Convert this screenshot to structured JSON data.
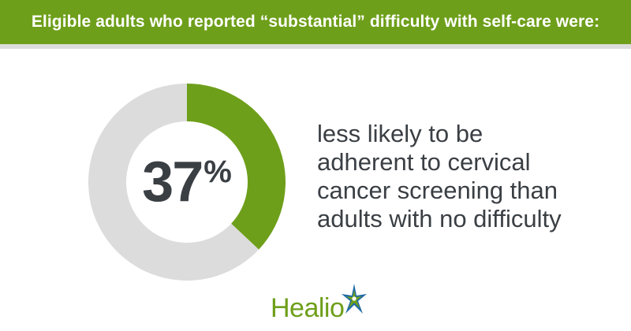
{
  "header": {
    "title": "Eligible adults who reported “substantial” difficulty with self-care were:"
  },
  "stat": {
    "number": "37",
    "percent_sign": "%"
  },
  "description": {
    "lines": [
      "less likely to be",
      "adherent to cervical",
      "cancer screening than",
      "adults with no difficulty"
    ]
  },
  "logo": {
    "text": "Healio"
  },
  "colors": {
    "brand_green": "#6e9f1a",
    "ring_gray": "#dcdcdc",
    "text_dark": "#3a3f44",
    "star_blue": "#1f6aa5"
  },
  "chart_data": {
    "type": "pie",
    "style": "donut",
    "values": [
      37,
      63
    ],
    "colors": [
      "#6e9f1a",
      "#dcdcdc"
    ],
    "center_label": "37%"
  }
}
